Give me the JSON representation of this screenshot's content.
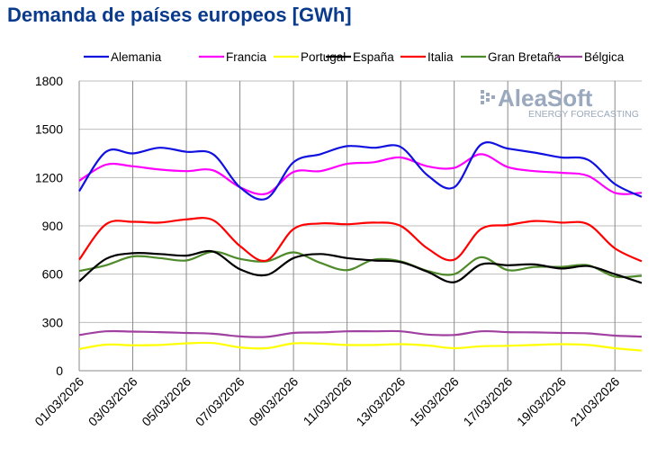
{
  "chart_data": {
    "type": "line",
    "title": "Demanda de países europeos [GWh]",
    "xlabel": "",
    "ylabel": "",
    "ylim": [
      0,
      1800
    ],
    "yticks": [
      0,
      300,
      600,
      900,
      1200,
      1500,
      1800
    ],
    "grid": true,
    "legend_position": "top",
    "xtick_labels": [
      "01/03/2026",
      "03/03/2026",
      "05/03/2026",
      "07/03/2026",
      "09/03/2026",
      "11/03/2026",
      "13/03/2026",
      "15/03/2026",
      "17/03/2026",
      "19/03/2026",
      "21/03/2026"
    ],
    "x": [
      "01/03/2026",
      "02/03/2026",
      "03/03/2026",
      "04/03/2026",
      "05/03/2026",
      "06/03/2026",
      "07/03/2026",
      "08/03/2026",
      "09/03/2026",
      "10/03/2026",
      "11/03/2026",
      "12/03/2026",
      "13/03/2026",
      "14/03/2026",
      "15/03/2026",
      "16/03/2026",
      "17/03/2026",
      "18/03/2026",
      "19/03/2026",
      "20/03/2026",
      "21/03/2026",
      "22/03/2026"
    ],
    "series": [
      {
        "name": "Alemania",
        "color": "#1010e0",
        "values": [
          1115,
          1360,
          1350,
          1385,
          1360,
          1345,
          1140,
          1070,
          1295,
          1345,
          1395,
          1385,
          1390,
          1215,
          1140,
          1405,
          1380,
          1355,
          1325,
          1310,
          1160,
          1080
        ]
      },
      {
        "name": "Francia",
        "color": "#ff00ff",
        "values": [
          1180,
          1280,
          1270,
          1250,
          1240,
          1245,
          1140,
          1100,
          1235,
          1240,
          1285,
          1295,
          1325,
          1270,
          1260,
          1345,
          1265,
          1240,
          1230,
          1210,
          1105,
          1105
        ]
      },
      {
        "name": "Portugal",
        "color": "#ffff00",
        "values": [
          135,
          162,
          158,
          160,
          170,
          172,
          145,
          140,
          170,
          168,
          160,
          160,
          165,
          157,
          140,
          152,
          155,
          160,
          165,
          160,
          140,
          125
        ]
      },
      {
        "name": "España",
        "color": "#000000",
        "values": [
          555,
          695,
          730,
          725,
          715,
          740,
          630,
          595,
          700,
          725,
          700,
          685,
          675,
          615,
          550,
          660,
          655,
          660,
          635,
          650,
          600,
          545
        ]
      },
      {
        "name": "Italia",
        "color": "#ff0000",
        "values": [
          690,
          910,
          925,
          920,
          940,
          935,
          775,
          685,
          880,
          915,
          910,
          920,
          900,
          760,
          690,
          880,
          905,
          930,
          920,
          910,
          760,
          680
        ]
      },
      {
        "name": "Gran Bretaña",
        "color": "#4f8a2a",
        "values": [
          620,
          655,
          710,
          700,
          685,
          740,
          695,
          680,
          735,
          670,
          625,
          690,
          680,
          620,
          600,
          705,
          625,
          645,
          645,
          655,
          585,
          590
        ]
      },
      {
        "name": "Bélgica",
        "color": "#a040a0",
        "values": [
          222,
          245,
          243,
          240,
          235,
          230,
          213,
          210,
          235,
          238,
          245,
          245,
          245,
          225,
          222,
          245,
          240,
          238,
          235,
          232,
          218,
          212
        ]
      }
    ]
  },
  "watermark": {
    "brand": "AleaSoft",
    "tagline": "ENERGY FORECASTING"
  }
}
